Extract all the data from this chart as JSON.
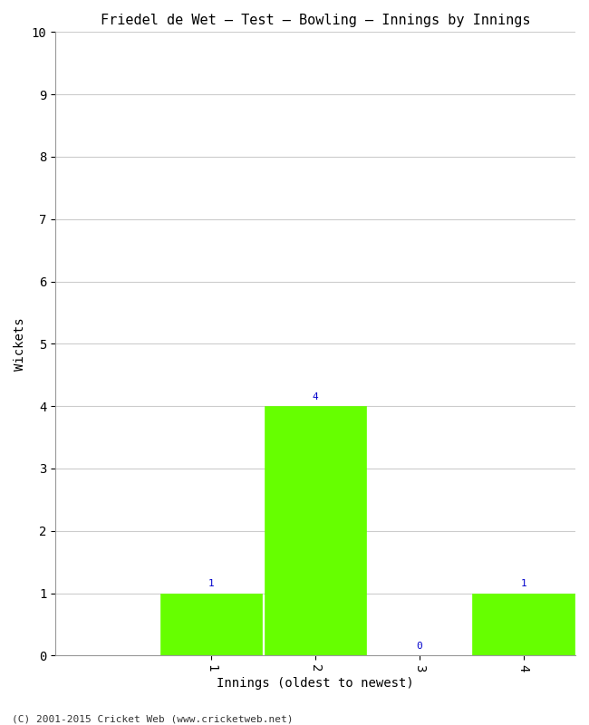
{
  "title": "Friedel de Wet – Test – Bowling – Innings by Innings",
  "xlabel": "Innings (oldest to newest)",
  "ylabel": "Wickets",
  "categories": [
    "1",
    "2",
    "3",
    "4"
  ],
  "values": [
    1,
    4,
    0,
    1
  ],
  "bar_color": "#66ff00",
  "bar_edge_color": "#66ff00",
  "ylim": [
    0,
    10
  ],
  "yticks": [
    0,
    1,
    2,
    3,
    4,
    5,
    6,
    7,
    8,
    9,
    10
  ],
  "annotation_color": "#0000cc",
  "grid_color": "#cccccc",
  "background_color": "#ffffff",
  "title_fontsize": 11,
  "axis_label_fontsize": 10,
  "tick_fontsize": 10,
  "annotation_fontsize": 8,
  "footer_text": "(C) 2001-2015 Cricket Web (www.cricketweb.net)",
  "footer_fontsize": 8,
  "xlim": [
    -0.5,
    4.5
  ]
}
